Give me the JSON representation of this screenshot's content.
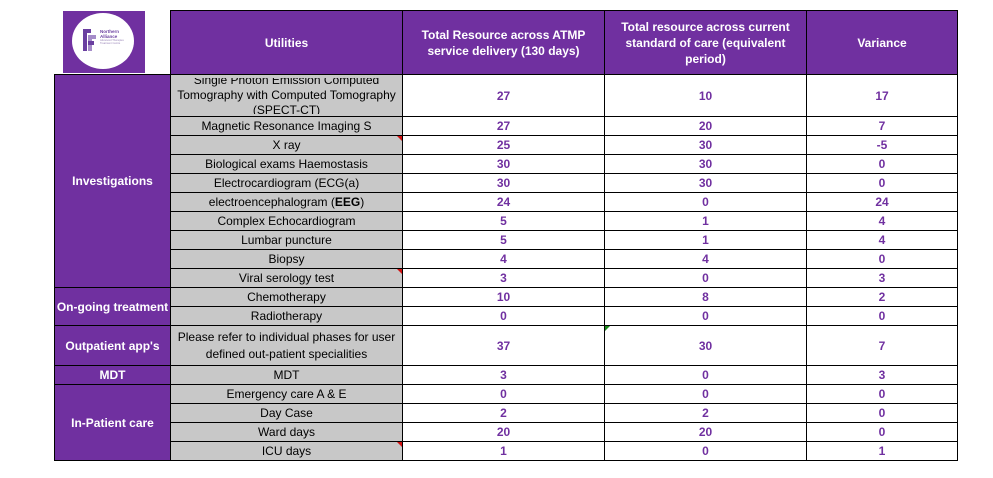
{
  "logo": {
    "line1": "Northern",
    "line2": "Alliance",
    "line3": "Advanced Therapies Treatment Centre"
  },
  "header": {
    "utilities": "Utilities",
    "atmp": "Total Resource across ATMP service delivery (130 days)",
    "standard": "Total resource across current standard of care (equivalent period)",
    "variance": "Variance"
  },
  "categories": {
    "investigations": "Investigations",
    "ongoing": "On-going treatment",
    "outpatient": "Outpatient app's",
    "mdt": "MDT",
    "inpatient": "In-Patient care"
  },
  "rows": [
    {
      "utility": "Single Photon Emission Computed Tomography with Computed Tomography (SPECT-CT)",
      "atmp": "27",
      "standard": "10",
      "variance": "17"
    },
    {
      "utility": "Magnetic Resonance Imaging S",
      "atmp": "27",
      "standard": "20",
      "variance": "7"
    },
    {
      "utility": "X ray",
      "atmp": "25",
      "standard": "30",
      "variance": "-5"
    },
    {
      "utility": "Biological exams Haemostasis",
      "atmp": "30",
      "standard": "30",
      "variance": "0"
    },
    {
      "utility": "Electrocardiogram (ECG(a)",
      "atmp": "30",
      "standard": "30",
      "variance": "0"
    },
    {
      "utility": "electroencephalogram",
      "utility_bold": "EEG",
      "atmp": "24",
      "standard": "0",
      "variance": "24"
    },
    {
      "utility": "Complex Echocardiogram",
      "atmp": "5",
      "standard": "1",
      "variance": "4"
    },
    {
      "utility": "Lumbar puncture",
      "atmp": "5",
      "standard": "1",
      "variance": "4"
    },
    {
      "utility": "Biopsy",
      "atmp": "4",
      "standard": "4",
      "variance": "0"
    },
    {
      "utility": "Viral serology test",
      "atmp": "3",
      "standard": "0",
      "variance": "3"
    },
    {
      "utility": "Chemotherapy",
      "atmp": "10",
      "standard": "8",
      "variance": "2"
    },
    {
      "utility": "Radiotherapy",
      "atmp": "0",
      "standard": "0",
      "variance": "0"
    },
    {
      "utility": "Please refer to individual phases for user defined out-patient specialities",
      "atmp": "37",
      "standard": "30",
      "variance": "7"
    },
    {
      "utility": "MDT",
      "atmp": "3",
      "standard": "0",
      "variance": "3"
    },
    {
      "utility": "Emergency care A & E",
      "atmp": "0",
      "standard": "0",
      "variance": "0"
    },
    {
      "utility": "Day Case",
      "atmp": "2",
      "standard": "2",
      "variance": "0"
    },
    {
      "utility": "Ward days",
      "atmp": "20",
      "standard": "20",
      "variance": "0"
    },
    {
      "utility": "ICU days",
      "atmp": "1",
      "standard": "0",
      "variance": "1"
    }
  ]
}
